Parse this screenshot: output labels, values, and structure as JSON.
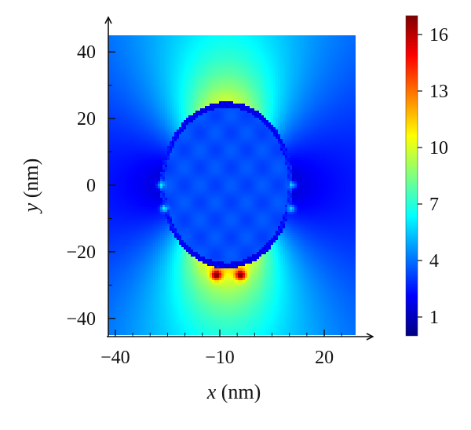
{
  "chart_data": {
    "type": "heatmap",
    "title": "",
    "xlabel": {
      "var": "x",
      "unit": " (nm)"
    },
    "ylabel": {
      "var": "y",
      "unit": " (nm)"
    },
    "xlim": [
      -42,
      29
    ],
    "ylim": [
      -45,
      45
    ],
    "x_ticks": [
      {
        "value": -40,
        "label": "−40"
      },
      {
        "value": -10,
        "label": "−10"
      },
      {
        "value": 20,
        "label": "20"
      }
    ],
    "y_ticks": [
      {
        "value": 40,
        "label": "40"
      },
      {
        "value": 20,
        "label": "20"
      },
      {
        "value": 0,
        "label": "0"
      },
      {
        "value": -20,
        "label": "−20"
      },
      {
        "value": -40,
        "label": "−40"
      }
    ],
    "colorbar": {
      "range": [
        0,
        17
      ],
      "colormap": "jet",
      "ticks": [
        {
          "value": 1,
          "label": "1"
        },
        {
          "value": 4,
          "label": "4"
        },
        {
          "value": 7,
          "label": "7"
        },
        {
          "value": 10,
          "label": "10"
        },
        {
          "value": 13,
          "label": "13"
        },
        {
          "value": 16,
          "label": "16"
        }
      ]
    },
    "field": {
      "description_values": "field enhancement map around an elliptical particle",
      "particle_center": [
        -8,
        0
      ],
      "particle_semi_axes": [
        19,
        25
      ],
      "inside_value": 3.4,
      "background_value": 3.4,
      "hotspot_peak": 17,
      "hotspots": [
        {
          "x": -11,
          "y": -27,
          "value": 16.5
        },
        {
          "x": -4,
          "y": -27,
          "value": 16.5
        }
      ]
    },
    "grid": false
  }
}
